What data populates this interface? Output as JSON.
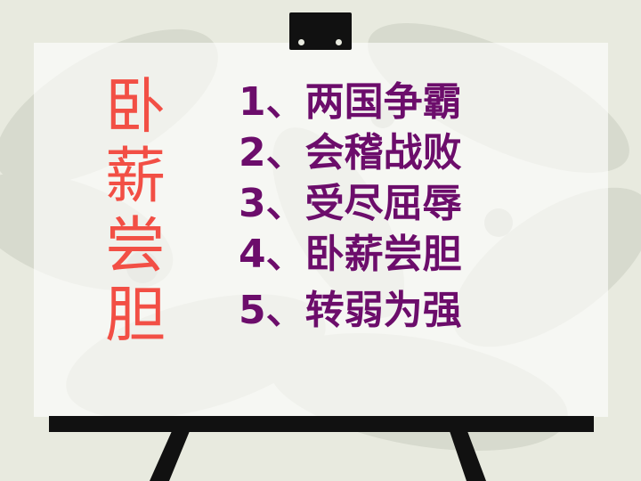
{
  "title_chars": [
    "卧",
    "薪",
    "尝",
    "胆"
  ],
  "items": [
    {
      "text": "1、两国争霸"
    },
    {
      "text": "2、会稽战败"
    },
    {
      "text": "3、受尽屈辱"
    },
    {
      "text": "4、卧薪尝胆"
    },
    {
      "text": "5、转弱为强"
    }
  ],
  "colors": {
    "title": "#f24f45",
    "items": "#6c0d6b",
    "easel": "#111111"
  }
}
